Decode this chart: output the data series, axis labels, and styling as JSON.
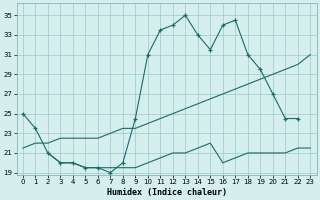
{
  "xlabel": "Humidex (Indice chaleur)",
  "bg_color": "#d5eeee",
  "grid_color": "#9ec8c8",
  "line_color": "#1a6b6b",
  "curve1_x": [
    0,
    1,
    2,
    3,
    4,
    5,
    6,
    7,
    8,
    9,
    10,
    11,
    12,
    13,
    14,
    15,
    16,
    17,
    18,
    19,
    20,
    21,
    22
  ],
  "curve1_y": [
    25,
    23.5,
    21,
    20,
    20,
    19.5,
    19.5,
    19,
    20,
    24.5,
    31,
    33.5,
    34,
    35,
    33,
    31.5,
    34,
    34.5,
    31,
    29.5,
    27,
    24.5,
    24.5
  ],
  "curve2_x": [
    0,
    1,
    2,
    3,
    4,
    5,
    6,
    7,
    8,
    9,
    10,
    11,
    12,
    13,
    14,
    15,
    16,
    17,
    18,
    19,
    20,
    21,
    22,
    23
  ],
  "curve2_y": [
    21.5,
    22,
    22,
    22.5,
    22.5,
    22.5,
    22.5,
    23,
    23.5,
    23.5,
    24,
    24.5,
    25,
    25.5,
    26,
    26.5,
    27,
    27.5,
    28,
    28.5,
    29,
    29.5,
    30,
    31
  ],
  "curve3_x": [
    2,
    3,
    4,
    5,
    6,
    7,
    8,
    9,
    10,
    11,
    12,
    13,
    14,
    15,
    16,
    17,
    18,
    19,
    20,
    21,
    22,
    23
  ],
  "curve3_y": [
    21,
    20,
    20,
    19.5,
    19.5,
    19.5,
    19.5,
    19.5,
    20,
    20.5,
    21,
    21,
    21.5,
    22,
    20,
    20.5,
    21,
    21,
    21,
    21,
    21.5,
    21.5
  ],
  "ylim": [
    18.8,
    36.2
  ],
  "xlim": [
    -0.5,
    23.5
  ],
  "yticks": [
    19,
    21,
    23,
    25,
    27,
    29,
    31,
    33,
    35
  ],
  "xticks": [
    0,
    1,
    2,
    3,
    4,
    5,
    6,
    7,
    8,
    9,
    10,
    11,
    12,
    13,
    14,
    15,
    16,
    17,
    18,
    19,
    20,
    21,
    22,
    23
  ]
}
